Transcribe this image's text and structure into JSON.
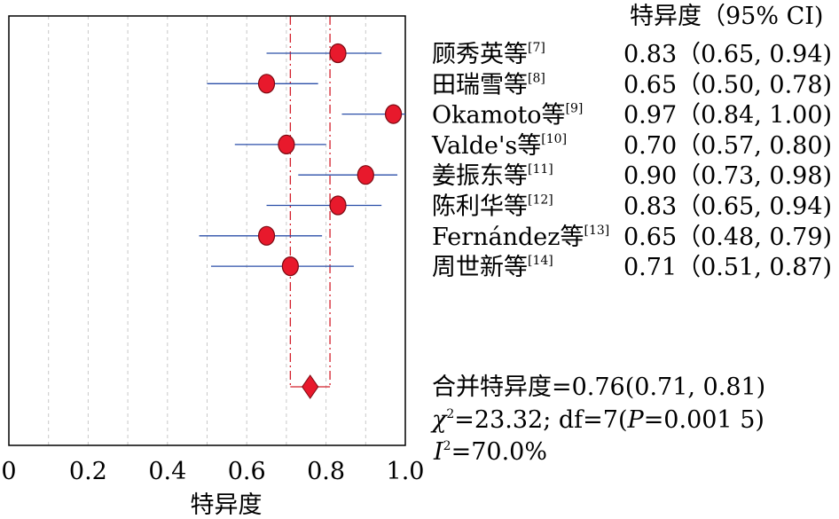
{
  "chart_data": {
    "type": "forest",
    "header": "特异度（95% CI)",
    "xlabel": "特异度",
    "xlim": [
      0,
      1.0
    ],
    "xticks": [
      "0",
      "0.2",
      "0.4",
      "0.6",
      "0.8",
      "1.0"
    ],
    "grid": "vertical dashed",
    "studies": [
      {
        "name": "顾秀英等",
        "ref": "[7]",
        "est": 0.83,
        "lo": 0.65,
        "hi": 0.94,
        "ci_text": "0.83（0.65, 0.94)"
      },
      {
        "name": "田瑞雪等",
        "ref": "[8]",
        "est": 0.65,
        "lo": 0.5,
        "hi": 0.78,
        "ci_text": "0.65（0.50, 0.78)"
      },
      {
        "name": "Okamoto等",
        "ref": "[9]",
        "est": 0.97,
        "lo": 0.84,
        "hi": 1.0,
        "ci_text": "0.97（0.84, 1.00)"
      },
      {
        "name": "Valde's等",
        "ref": "[10]",
        "est": 0.7,
        "lo": 0.57,
        "hi": 0.8,
        "ci_text": "0.70（0.57, 0.80)"
      },
      {
        "name": "姜振东等",
        "ref": "[11]",
        "est": 0.9,
        "lo": 0.73,
        "hi": 0.98,
        "ci_text": "0.90（0.73, 0.98)"
      },
      {
        "name": "陈利华等",
        "ref": "[12]",
        "est": 0.83,
        "lo": 0.65,
        "hi": 0.94,
        "ci_text": "0.83（0.65, 0.94)"
      },
      {
        "name": "Fernández等",
        "ref": "[13]",
        "est": 0.65,
        "lo": 0.48,
        "hi": 0.79,
        "ci_text": "0.65（0.48, 0.79)"
      },
      {
        "name": "周世新等",
        "ref": "[14]",
        "est": 0.71,
        "lo": 0.51,
        "hi": 0.87,
        "ci_text": "0.71（0.51, 0.87)"
      }
    ],
    "pooled": {
      "est": 0.76,
      "lo": 0.71,
      "hi": 0.81
    },
    "stats": {
      "pooled_text": "合并特异度=0.76(0.71, 0.81)",
      "chi_symbol": "χ",
      "chi_exp": "2",
      "chi_rest_a": "=23.32; df=7(",
      "chi_p": "P",
      "chi_rest_b": "=0.001 5)",
      "i_symbol": "I",
      "i_exp": "2",
      "i_rest": "=70.0%"
    },
    "colors": {
      "point": "#e8192c",
      "ci_line": "#2b4fa8",
      "ref_line": "#d4202c",
      "grid": "#c8c8c8",
      "axis": "#000000"
    }
  }
}
